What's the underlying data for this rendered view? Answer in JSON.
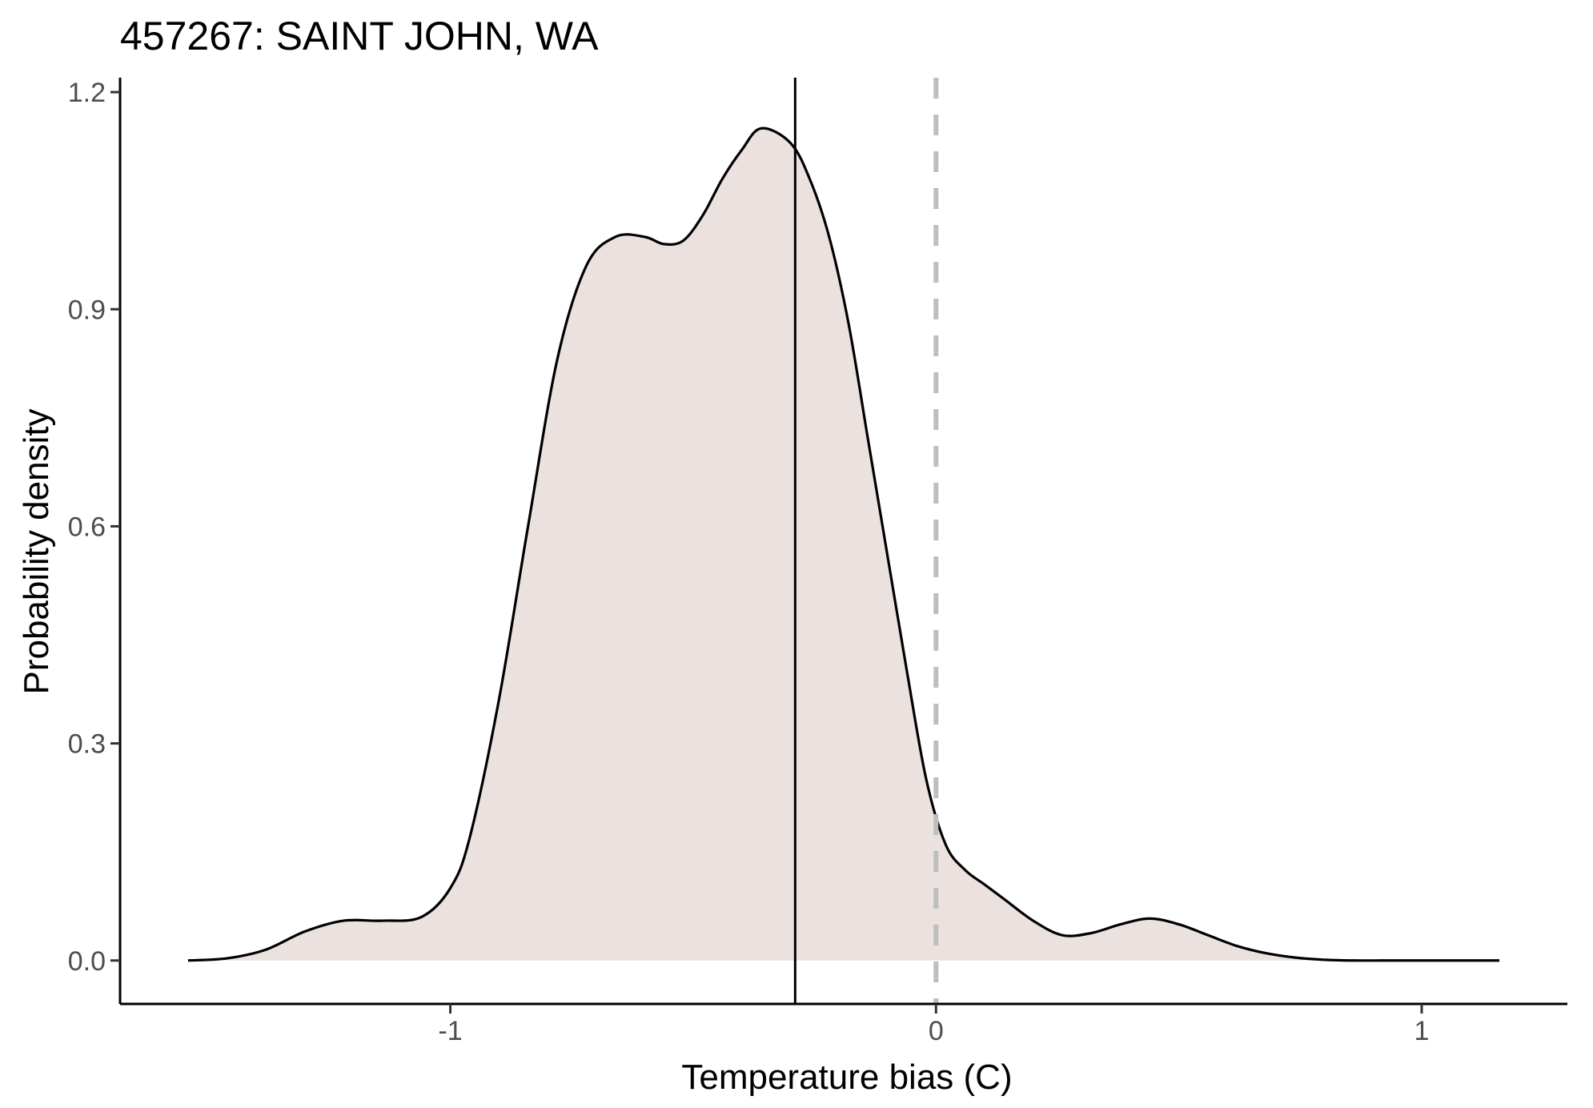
{
  "chart_data": {
    "type": "area",
    "title": "457267: SAINT JOHN, WA",
    "xlabel": "Temperature bias (C)",
    "ylabel": "Probability density",
    "xlim": [
      -1.68,
      1.3
    ],
    "ylim": [
      -0.06,
      1.22
    ],
    "x_ticks": [
      -1,
      0,
      1
    ],
    "x_tick_labels": [
      "-1",
      "0",
      "1"
    ],
    "y_ticks": [
      0.0,
      0.3,
      0.6,
      0.9,
      1.2
    ],
    "y_tick_labels": [
      "0.0",
      "0.3",
      "0.6",
      "0.9",
      "1.2"
    ],
    "grid": false,
    "fill_color": "#ebe1de",
    "line_color": "#000000",
    "series": [
      {
        "x": [
          -1.54,
          -1.46,
          -1.38,
          -1.3,
          -1.22,
          -1.14,
          -1.06,
          -1.0,
          -0.96,
          -0.9,
          -0.84,
          -0.78,
          -0.72,
          -0.66,
          -0.6,
          -0.56,
          -0.52,
          -0.48,
          -0.44,
          -0.4,
          -0.36,
          -0.3,
          -0.26,
          -0.22,
          -0.18,
          -0.14,
          -0.1,
          -0.06,
          -0.02,
          0.02,
          0.06,
          0.1,
          0.14,
          0.2,
          0.26,
          0.32,
          0.38,
          0.44,
          0.5,
          0.56,
          0.62,
          0.68,
          0.74,
          0.8,
          0.86,
          0.92,
          0.98,
          1.04,
          1.1,
          1.16
        ],
        "y": [
          0.0,
          0.003,
          0.015,
          0.04,
          0.055,
          0.055,
          0.06,
          0.1,
          0.17,
          0.36,
          0.6,
          0.83,
          0.96,
          1.0,
          1.0,
          0.99,
          0.995,
          1.03,
          1.08,
          1.12,
          1.15,
          1.13,
          1.08,
          1.0,
          0.88,
          0.72,
          0.56,
          0.4,
          0.25,
          0.16,
          0.125,
          0.105,
          0.085,
          0.055,
          0.035,
          0.038,
          0.05,
          0.058,
          0.05,
          0.035,
          0.02,
          0.01,
          0.004,
          0.001,
          0.0,
          0.0,
          0.0,
          0.0,
          0.0,
          0.0
        ]
      }
    ],
    "reference_lines": [
      {
        "axis": "x",
        "value": -0.29,
        "style": "solid",
        "color": "#000000"
      },
      {
        "axis": "x",
        "value": 0.0,
        "style": "dashed",
        "color": "#bebebe"
      }
    ]
  }
}
